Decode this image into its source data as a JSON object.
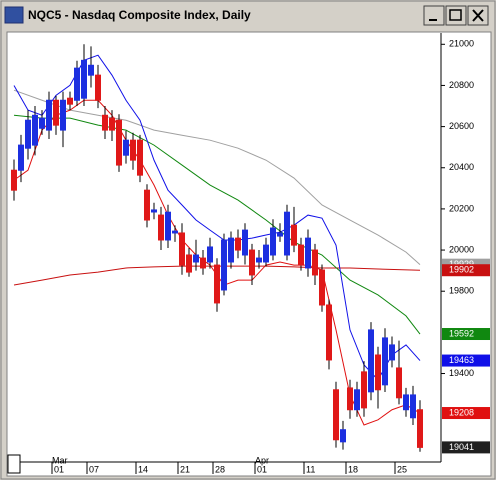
{
  "chart_data": {
    "type": "candlestick",
    "title": "NQC5 - Nasdaq Composite Index, Daily",
    "categories": [
      null,
      null,
      null,
      null,
      null,
      null,
      "01",
      null,
      null,
      null,
      null,
      "07",
      null,
      null,
      null,
      null,
      null,
      null,
      "14",
      null,
      null,
      null,
      null,
      null,
      "21",
      null,
      null,
      null,
      null,
      "28",
      null,
      null,
      null,
      null,
      null,
      "01",
      null,
      null,
      null,
      null,
      null,
      null,
      "11",
      null,
      null,
      null,
      null,
      null,
      "18",
      null,
      null,
      null,
      null,
      null,
      null,
      "25",
      null,
      null,
      null
    ],
    "month_labels": [
      null,
      null,
      null,
      null,
      null,
      null,
      "Mar",
      null,
      null,
      null,
      null,
      null,
      null,
      null,
      null,
      null,
      null,
      null,
      null,
      null,
      null,
      null,
      null,
      null,
      null,
      null,
      null,
      null,
      null,
      null,
      null,
      null,
      null,
      null,
      null,
      "Apr",
      null,
      null,
      null,
      null,
      null,
      null,
      null,
      null,
      null,
      null,
      null,
      null,
      null,
      null,
      null,
      null,
      null,
      null,
      null,
      null,
      null,
      null,
      null
    ],
    "open": [
      20388,
      20388,
      20495,
      20510,
      20592,
      20583,
      20728,
      20583,
      20738,
      20728,
      20738,
      20850,
      20850,
      20655,
      20641,
      20631,
      20461,
      20534,
      20534,
      20291,
      20185,
      20170,
      20049,
      20083,
      20083,
      19976,
      19942,
      19961,
      19942,
      19927,
      19806,
      19942,
      20058,
      19976,
      20000,
      19942,
      19942,
      19976,
      20068,
      19976,
      20121,
      20024,
      19913,
      20000,
      19903,
      19733,
      19321,
      19068,
      19330,
      19224,
      19408,
      19311,
      19490,
      19345,
      19466,
      19427,
      19224,
      19185,
      19224
    ],
    "high": [
      20440,
      20560,
      20680,
      20700,
      20680,
      20770,
      20750,
      20770,
      20770,
      20920,
      21000,
      20990,
      20900,
      20700,
      20680,
      20660,
      20580,
      20570,
      20560,
      20320,
      20230,
      20210,
      20220,
      20120,
      20130,
      20010,
      20050,
      20000,
      20060,
      19960,
      20080,
      20090,
      20100,
      20130,
      20030,
      20000,
      20060,
      20150,
      20130,
      20220,
      20210,
      20060,
      20100,
      20030,
      19930,
      19760,
      19360,
      19170,
      19370,
      19360,
      19460,
      19650,
      19530,
      19620,
      19580,
      19560,
      19330,
      19340,
      19270
    ],
    "low": [
      20240,
      20330,
      20440,
      20460,
      20560,
      20540,
      20560,
      20500,
      20680,
      20700,
      20700,
      20790,
      20690,
      20540,
      20530,
      20380,
      20420,
      20390,
      20330,
      20110,
      20150,
      20000,
      20010,
      20040,
      19880,
      19870,
      19900,
      19880,
      19910,
      19700,
      19780,
      19910,
      19960,
      19930,
      19830,
      19910,
      19920,
      19950,
      20040,
      19950,
      19990,
      19900,
      19870,
      19830,
      19700,
      19420,
      19040,
      19030,
      19180,
      19190,
      19190,
      19270,
      19230,
      19310,
      19430,
      19250,
      19190,
      19150,
      19020
    ],
    "close": [
      20291,
      20510,
      20631,
      20655,
      20641,
      20728,
      20607,
      20728,
      20709,
      20884,
      20922,
      20898,
      20728,
      20583,
      20583,
      20413,
      20534,
      20437,
      20364,
      20146,
      20195,
      20049,
      20184,
      20092,
      19927,
      19893,
      19976,
      19913,
      20015,
      19743,
      20049,
      20058,
      20000,
      20097,
      19879,
      19961,
      20024,
      20107,
      20083,
      20184,
      20024,
      19927,
      20058,
      19879,
      19733,
      19466,
      19078,
      19127,
      19224,
      19321,
      19233,
      19612,
      19321,
      19573,
      19539,
      19282,
      19296,
      19296,
      19041
    ],
    "up_color": "#1c2fe0",
    "down_color": "#e01818",
    "series": [
      {
        "color": "#a0a0a0",
        "x": [
          0,
          4,
          8,
          12,
          16,
          20,
          24,
          28,
          32,
          36,
          40,
          44,
          48,
          52,
          56,
          58
        ],
        "values": [
          20777,
          20728,
          20680,
          20655,
          20631,
          20583,
          20558,
          20534,
          20495,
          20437,
          20350,
          20219,
          20146,
          20073,
          19990,
          19929
        ]
      },
      {
        "color": "#c81010",
        "x": [
          0,
          4,
          8,
          12,
          16,
          20,
          24,
          28,
          32,
          36,
          40,
          44,
          48,
          52,
          58
        ],
        "values": [
          19830,
          19854,
          19879,
          19893,
          19913,
          19918,
          19922,
          19922,
          19922,
          19922,
          19918,
          19913,
          19913,
          19908,
          19902
        ]
      },
      {
        "color": "#108810",
        "x": [
          0,
          4,
          8,
          12,
          16,
          20,
          24,
          28,
          32,
          36,
          40,
          44,
          48,
          52,
          56,
          58
        ],
        "values": [
          20655,
          20641,
          20641,
          20607,
          20583,
          20510,
          20413,
          20316,
          20243,
          20146,
          20039,
          19976,
          19854,
          19782,
          19680,
          19592
        ]
      },
      {
        "color": "#1010e8",
        "x": [
          0,
          2,
          4,
          6,
          8,
          10,
          12,
          14,
          16,
          18,
          20,
          22,
          24,
          26,
          28,
          30,
          32,
          34,
          36,
          38,
          40,
          42,
          44,
          46,
          48,
          50,
          52,
          54,
          56,
          58
        ],
        "values": [
          20800,
          20680,
          20655,
          20752,
          20801,
          20922,
          20947,
          20850,
          20728,
          20631,
          20437,
          20291,
          20219,
          20146,
          20097,
          20049,
          20049,
          20058,
          20073,
          20087,
          20121,
          20170,
          20155,
          20024,
          19612,
          19442,
          19369,
          19490,
          19539,
          19463
        ]
      },
      {
        "color": "#e01010",
        "x": [
          0,
          2,
          4,
          6,
          8,
          10,
          12,
          14,
          16,
          18,
          20,
          22,
          24,
          26,
          28,
          30,
          32,
          34,
          36,
          38,
          40,
          42,
          44,
          46,
          48,
          50,
          52,
          54,
          56,
          58
        ],
        "values": [
          20340,
          20388,
          20583,
          20655,
          20680,
          20728,
          20728,
          20655,
          20534,
          20437,
          20316,
          20170,
          20049,
          19976,
          19927,
          19830,
          19854,
          19854,
          19927,
          19942,
          19927,
          19927,
          19903,
          19612,
          19296,
          19150,
          19175,
          19224,
          19248,
          19208
        ]
      }
    ],
    "close_tag_color": "#202020",
    "ylim": [
      18970,
      21050
    ],
    "yticks": [
      19400,
      19800,
      20000,
      20200,
      20400,
      20600,
      20800,
      21000
    ]
  }
}
